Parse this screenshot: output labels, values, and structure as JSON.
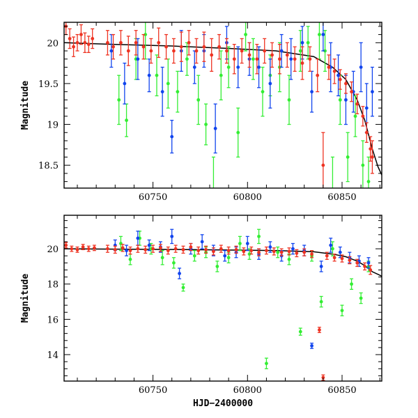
{
  "chart_data": [
    {
      "type": "scatter",
      "panel": "top",
      "title": "",
      "xlabel": "",
      "ylabel": "Magnitude",
      "xlim": [
        60703,
        60871
      ],
      "ylim": [
        20.25,
        18.22
      ],
      "y_inverted": true,
      "xticks": [
        60750,
        60800,
        60850
      ],
      "yticks": [
        18.5,
        19,
        19.5,
        20
      ],
      "ytick_labels": [
        "18.5",
        "19",
        "19.5",
        "20"
      ],
      "grid": false,
      "legend": "none",
      "model_curve": {
        "color": "#000000",
        "x": [
          60703,
          60730,
          60760,
          60790,
          60815,
          60835,
          60845,
          60852,
          60858,
          60862,
          60866,
          60869,
          60871
        ],
        "y": [
          20.0,
          19.98,
          19.96,
          19.93,
          19.9,
          19.83,
          19.7,
          19.55,
          19.3,
          19.05,
          18.7,
          18.48,
          18.38
        ]
      },
      "series": [
        {
          "color": "#33ee33",
          "x": [
            60732,
            60736,
            60741,
            60746,
            60752,
            60758,
            60763,
            60768,
            60774,
            60778,
            60782,
            60786,
            60790,
            60795,
            60799,
            60803,
            60808,
            60812,
            60817,
            60822,
            60828,
            60832,
            60838,
            60841,
            60845,
            60849,
            60853,
            60857,
            60861,
            60864
          ],
          "y": [
            19.3,
            19.05,
            19.8,
            20.1,
            19.6,
            19.5,
            19.4,
            19.8,
            19.3,
            19.0,
            18.2,
            19.6,
            19.7,
            18.9,
            20.1,
            19.8,
            19.4,
            19.6,
            19.7,
            19.3,
            19.9,
            20.0,
            20.1,
            19.9,
            18.2,
            19.3,
            18.6,
            19.1,
            18.5,
            18.3
          ],
          "err": [
            0.3,
            0.2,
            0.25,
            0.3,
            0.25,
            0.3,
            0.25,
            0.2,
            0.3,
            0.25,
            0.4,
            0.3,
            0.25,
            0.3,
            0.2,
            0.25,
            0.3,
            0.25,
            0.3,
            0.3,
            0.25,
            0.2,
            0.3,
            0.25,
            0.4,
            0.3,
            0.3,
            0.25,
            0.3,
            0.3
          ]
        },
        {
          "color": "#1144ee",
          "x": [
            60728,
            60735,
            60742,
            60748,
            60755,
            60760,
            60765,
            60772,
            60777,
            60783,
            60789,
            60795,
            60801,
            60806,
            60812,
            60818,
            60823,
            60829,
            60834,
            60840,
            60844,
            60848,
            60852,
            60856,
            60860,
            60863,
            60866
          ],
          "y": [
            19.9,
            19.5,
            19.8,
            19.6,
            19.4,
            18.85,
            19.9,
            19.7,
            19.9,
            18.95,
            20.0,
            19.7,
            19.8,
            19.7,
            19.5,
            19.9,
            19.8,
            20.0,
            19.4,
            20.1,
            19.7,
            19.6,
            19.3,
            19.4,
            19.7,
            19.2,
            19.4
          ],
          "err": [
            0.2,
            0.25,
            0.25,
            0.2,
            0.3,
            0.2,
            0.25,
            0.2,
            0.2,
            0.3,
            0.2,
            0.25,
            0.2,
            0.25,
            0.3,
            0.2,
            0.25,
            0.2,
            0.25,
            0.2,
            0.3,
            0.25,
            0.3,
            0.25,
            0.3,
            0.3,
            0.3
          ]
        },
        {
          "color": "#ee3322",
          "x": [
            60704,
            60706,
            60708,
            60710,
            60712,
            60714,
            60716,
            60718,
            60726,
            60729,
            60733,
            60737,
            60741,
            60745,
            60749,
            60753,
            60757,
            60761,
            60765,
            60769,
            60773,
            60777,
            60781,
            60785,
            60789,
            60793,
            60797,
            60801,
            60805,
            60809,
            60813,
            60817,
            60821,
            60825,
            60829,
            60833,
            60837,
            60840,
            60843,
            60846,
            60849,
            60852,
            60855,
            60858,
            60861,
            60863,
            60865,
            60866
          ],
          "y": [
            20.2,
            20.05,
            19.95,
            20.0,
            20.1,
            20.0,
            19.98,
            20.05,
            20.0,
            19.95,
            20.0,
            19.9,
            20.0,
            19.95,
            19.9,
            20.0,
            19.95,
            19.9,
            19.95,
            20.0,
            19.9,
            19.95,
            19.85,
            19.95,
            19.9,
            19.8,
            19.9,
            19.85,
            19.8,
            19.9,
            19.85,
            19.8,
            19.85,
            19.8,
            19.75,
            19.8,
            19.6,
            18.5,
            19.7,
            19.65,
            19.55,
            19.5,
            19.4,
            19.25,
            19.1,
            18.9,
            18.7,
            18.6
          ],
          "err": [
            0.1,
            0.12,
            0.12,
            0.1,
            0.12,
            0.12,
            0.1,
            0.12,
            0.15,
            0.15,
            0.15,
            0.18,
            0.15,
            0.15,
            0.15,
            0.18,
            0.15,
            0.15,
            0.18,
            0.15,
            0.15,
            0.18,
            0.2,
            0.15,
            0.15,
            0.18,
            0.15,
            0.15,
            0.18,
            0.15,
            0.15,
            0.18,
            0.15,
            0.15,
            0.2,
            0.15,
            0.2,
            0.4,
            0.15,
            0.15,
            0.12,
            0.12,
            0.12,
            0.12,
            0.12,
            0.12,
            0.15,
            0.2
          ]
        }
      ]
    },
    {
      "type": "scatter",
      "panel": "bottom",
      "title": "",
      "xlabel": "HJD−2400000",
      "ylabel": "Magnitude",
      "xlim": [
        60703,
        60871
      ],
      "ylim": [
        21.9,
        12.5
      ],
      "y_inverted": true,
      "xticks": [
        60750,
        60800,
        60850
      ],
      "yticks": [
        14,
        16,
        18,
        20
      ],
      "ytick_labels": [
        "14",
        "16",
        "18",
        "20"
      ],
      "grid": false,
      "legend": "none",
      "model_curve": {
        "color": "#000000",
        "x": [
          60703,
          60730,
          60760,
          60790,
          60815,
          60835,
          60845,
          60852,
          60858,
          60862,
          60866,
          60869,
          60871
        ],
        "y": [
          20.0,
          19.98,
          19.96,
          19.93,
          19.9,
          19.83,
          19.7,
          19.55,
          19.3,
          19.05,
          18.7,
          18.55,
          18.45
        ]
      },
      "series": [
        {
          "color": "#33ee33",
          "x": [
            60733,
            60738,
            60743,
            60749,
            60755,
            60761,
            60766,
            60772,
            60778,
            60784,
            60790,
            60796,
            60801,
            60806,
            60810,
            60816,
            60822,
            60828,
            60834,
            60839,
            60845,
            60850,
            60855,
            60860,
            60864
          ],
          "y": [
            20.3,
            19.4,
            20.6,
            20.0,
            19.5,
            19.2,
            17.8,
            19.6,
            19.8,
            19.0,
            19.5,
            20.3,
            19.7,
            20.7,
            13.5,
            19.8,
            19.4,
            15.3,
            19.6,
            17.0,
            20.0,
            16.5,
            18.0,
            17.2,
            19.0
          ],
          "err": [
            0.4,
            0.3,
            0.4,
            0.3,
            0.4,
            0.3,
            0.2,
            0.3,
            0.3,
            0.3,
            0.3,
            0.4,
            0.3,
            0.4,
            0.3,
            0.3,
            0.3,
            0.2,
            0.3,
            0.3,
            0.4,
            0.3,
            0.3,
            0.3,
            0.3
          ]
        },
        {
          "color": "#1144ee",
          "x": [
            60730,
            60736,
            60742,
            60748,
            60754,
            60760,
            60764,
            60770,
            60776,
            60782,
            60788,
            60794,
            60800,
            60806,
            60812,
            60818,
            60824,
            60830,
            60834,
            60839,
            60844,
            60849,
            60854,
            60859,
            60864
          ],
          "y": [
            20.2,
            19.9,
            20.6,
            20.2,
            20.1,
            20.7,
            18.6,
            20.0,
            20.4,
            19.9,
            19.6,
            19.8,
            20.3,
            19.7,
            20.1,
            19.6,
            20.0,
            19.9,
            14.5,
            19.0,
            20.2,
            19.8,
            19.5,
            19.3,
            19.2
          ],
          "err": [
            0.3,
            0.3,
            0.4,
            0.3,
            0.3,
            0.4,
            0.3,
            0.3,
            0.4,
            0.3,
            0.3,
            0.3,
            0.4,
            0.3,
            0.3,
            0.3,
            0.3,
            0.3,
            0.15,
            0.3,
            0.4,
            0.3,
            0.3,
            0.3,
            0.3
          ]
        },
        {
          "color": "#ee3322",
          "x": [
            60704,
            60707,
            60710,
            60713,
            60716,
            60719,
            60726,
            60730,
            60734,
            60738,
            60742,
            60746,
            60750,
            60754,
            60758,
            60762,
            60766,
            60770,
            60774,
            60778,
            60782,
            60786,
            60790,
            60794,
            60798,
            60802,
            60806,
            60810,
            60814,
            60818,
            60822,
            60826,
            60830,
            60834,
            60838,
            60840,
            60842,
            60846,
            60850,
            60854,
            60858,
            60862,
            60865
          ],
          "y": [
            20.2,
            20.0,
            19.95,
            20.1,
            20.0,
            20.05,
            20.0,
            19.95,
            20.05,
            19.9,
            20.0,
            19.95,
            20.0,
            20.05,
            19.9,
            20.0,
            19.95,
            20.1,
            19.9,
            19.95,
            19.85,
            20.0,
            19.9,
            19.95,
            19.85,
            19.9,
            19.8,
            19.9,
            19.85,
            19.8,
            19.85,
            19.75,
            19.8,
            19.7,
            15.4,
            12.7,
            19.6,
            19.5,
            19.45,
            19.35,
            19.2,
            19.0,
            18.8
          ],
          "err": [
            0.15,
            0.15,
            0.15,
            0.15,
            0.15,
            0.15,
            0.2,
            0.2,
            0.2,
            0.2,
            0.2,
            0.2,
            0.2,
            0.2,
            0.2,
            0.2,
            0.2,
            0.2,
            0.2,
            0.2,
            0.2,
            0.2,
            0.2,
            0.2,
            0.2,
            0.2,
            0.2,
            0.2,
            0.2,
            0.2,
            0.2,
            0.2,
            0.2,
            0.2,
            0.15,
            0.15,
            0.2,
            0.2,
            0.2,
            0.2,
            0.2,
            0.2,
            0.25
          ]
        }
      ]
    }
  ]
}
